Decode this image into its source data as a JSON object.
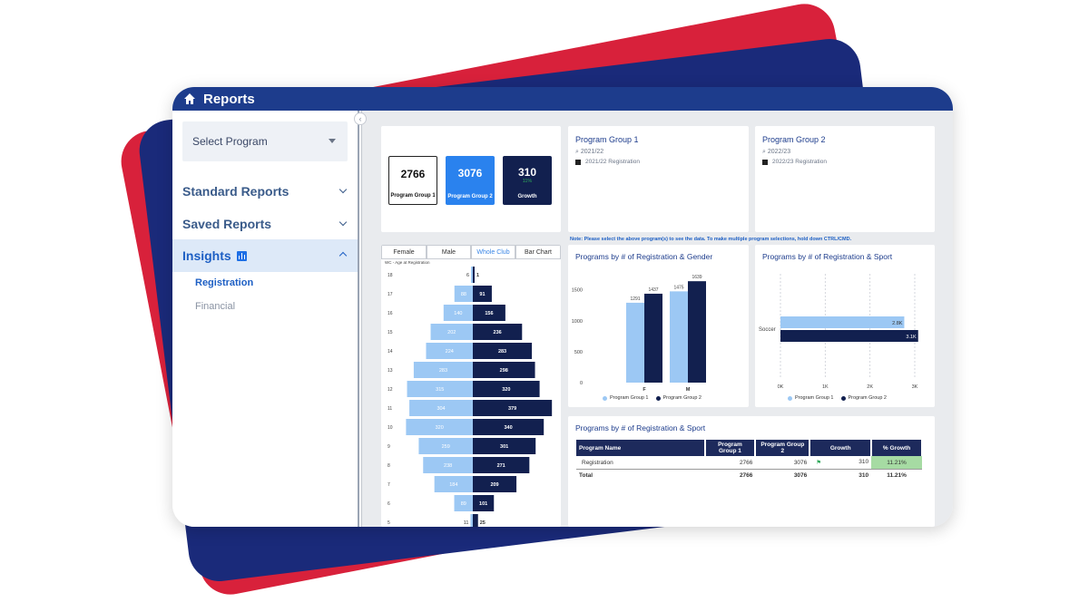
{
  "app": {
    "title": "Reports",
    "home_icon": "home-icon"
  },
  "sidebar": {
    "select_program": "Select Program",
    "items": [
      {
        "label": "Standard Reports"
      },
      {
        "label": "Saved Reports"
      },
      {
        "label": "Insights"
      }
    ],
    "subitems": [
      {
        "label": "Registration"
      },
      {
        "label": "Financial"
      }
    ]
  },
  "kpis": [
    {
      "value": "2766",
      "label": "Program Group 1"
    },
    {
      "value": "3076",
      "label": "Program Group 2"
    },
    {
      "value": "310",
      "pct": "11%",
      "label": "Growth"
    }
  ],
  "program_group_1": {
    "title": "Program Group 1",
    "search": "2021/22",
    "item": "2021/22 Registration"
  },
  "program_group_2": {
    "title": "Program Group 2",
    "search": "2022/23",
    "item": "2022/23 Registration"
  },
  "note": "Note: Please select the above program(s) to see the data. To make multiple program selections, hold down CTRL/CMD.",
  "pyramid": {
    "tabs": [
      "Female",
      "Male",
      "Whole Club",
      "Bar Chart"
    ],
    "subtitle": "WC - Age at Registration"
  },
  "colors": {
    "light": "#9cc8f4",
    "dark": "#12204f",
    "accent": "#1d6fe6",
    "title": "#1d3c8c"
  },
  "chart_data": [
    {
      "type": "bar",
      "title": "WC - Age at Registration",
      "categories": [
        "18",
        "17",
        "16",
        "15",
        "14",
        "13",
        "12",
        "11",
        "10",
        "9",
        "8",
        "7",
        "6",
        "5"
      ],
      "series": [
        {
          "values": [
            6,
            88,
            140,
            202,
            224,
            283,
            315,
            304,
            320,
            259,
            238,
            184,
            89,
            11
          ]
        },
        {
          "values": [
            1,
            91,
            156,
            236,
            283,
            298,
            320,
            379,
            340,
            301,
            271,
            209,
            101,
            25
          ]
        }
      ]
    },
    {
      "type": "bar",
      "title": "Programs by # of Registration & Gender",
      "categories": [
        "F",
        "M"
      ],
      "series": [
        {
          "name": "Program Group 1",
          "values": [
            1291,
            1475
          ]
        },
        {
          "name": "Program Group 2",
          "values": [
            1437,
            1639
          ]
        }
      ],
      "yticks": [
        "0",
        "500",
        "1000",
        "1500"
      ],
      "ylim": [
        0,
        1700
      ]
    },
    {
      "type": "bar",
      "title": "Programs by # of Registration & Sport",
      "categories": [
        "Soccer"
      ],
      "series": [
        {
          "name": "Program Group 1",
          "values": [
            2766
          ],
          "label": "2.8K"
        },
        {
          "name": "Program Group 2",
          "values": [
            3076
          ],
          "label": "3.1K"
        }
      ],
      "xticks": [
        "0K",
        "1K",
        "2K",
        "3K"
      ],
      "xlim": [
        0,
        3000
      ]
    },
    {
      "type": "table",
      "title": "Programs by # of Registration & Sport",
      "columns": [
        "Program Name",
        "Program Group 1",
        "Program Group 2",
        "Growth",
        "% Growth"
      ],
      "rows": [
        [
          "Registration",
          "2766",
          "3076",
          "310",
          "11.21%"
        ]
      ],
      "total": [
        "Total",
        "2766",
        "3076",
        "310",
        "11.21%"
      ]
    }
  ]
}
